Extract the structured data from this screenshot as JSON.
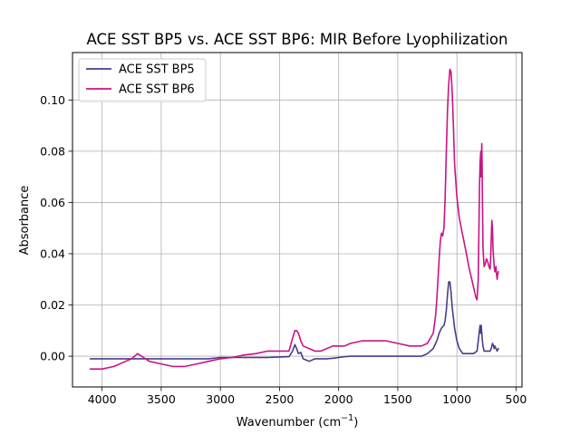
{
  "chart_data": {
    "type": "line",
    "title": "ACE SST BP5 vs. ACE SST BP6: MIR Before Lyophilization",
    "xlabel": "Wavenumber (cm",
    "xlabel_sup": "−1",
    "xlabel_close": ")",
    "ylabel": "Absorbance",
    "xlim": [
      4250,
      450
    ],
    "ylim": [
      -0.012,
      0.1185
    ],
    "x_reversed": true,
    "grid": true,
    "legend_position": "upper-left",
    "x_ticks": [
      {
        "value": 4000,
        "label": "4000"
      },
      {
        "value": 3500,
        "label": "3500"
      },
      {
        "value": 3000,
        "label": "3000"
      },
      {
        "value": 2500,
        "label": "2500"
      },
      {
        "value": 2000,
        "label": "2000"
      },
      {
        "value": 1500,
        "label": "1500"
      },
      {
        "value": 1000,
        "label": "1000"
      },
      {
        "value": 500,
        "label": "500"
      }
    ],
    "y_ticks": [
      {
        "value": 0.0,
        "label": "0.00"
      },
      {
        "value": 0.02,
        "label": "0.02"
      },
      {
        "value": 0.04,
        "label": "0.04"
      },
      {
        "value": 0.06,
        "label": "0.06"
      },
      {
        "value": 0.08,
        "label": "0.08"
      },
      {
        "value": 0.1,
        "label": "0.10"
      }
    ],
    "series": [
      {
        "name": "ACE SST BP5",
        "color": "#483d8b",
        "x": [
          4100,
          4000,
          3900,
          3800,
          3700,
          3600,
          3500,
          3400,
          3300,
          3200,
          3100,
          3000,
          2900,
          2800,
          2700,
          2600,
          2500,
          2420,
          2390,
          2370,
          2355,
          2340,
          2320,
          2300,
          2250,
          2200,
          2150,
          2100,
          2050,
          2000,
          1950,
          1900,
          1800,
          1700,
          1600,
          1500,
          1400,
          1300,
          1250,
          1200,
          1170,
          1150,
          1130,
          1110,
          1100,
          1090,
          1080,
          1070,
          1060,
          1050,
          1040,
          1020,
          1000,
          980,
          950,
          900,
          860,
          830,
          815,
          805,
          800,
          795,
          790,
          785,
          780,
          770,
          760,
          740,
          720,
          710,
          700,
          690,
          685,
          680,
          670,
          660,
          650
        ],
        "y": [
          -0.001,
          -0.001,
          -0.001,
          -0.001,
          -0.001,
          -0.001,
          -0.001,
          -0.001,
          -0.001,
          -0.001,
          -0.001,
          -0.0005,
          -0.0005,
          -0.0005,
          -0.0005,
          -0.0005,
          -0.0003,
          -0.0002,
          0.002,
          0.0045,
          0.003,
          0.001,
          0.0015,
          -0.001,
          -0.002,
          -0.001,
          -0.001,
          -0.001,
          -0.0008,
          -0.0005,
          -0.0002,
          0.0,
          0.0,
          0.0,
          0.0,
          0.0,
          0.0,
          0.0,
          0.001,
          0.003,
          0.006,
          0.009,
          0.011,
          0.012,
          0.014,
          0.018,
          0.024,
          0.029,
          0.029,
          0.025,
          0.019,
          0.011,
          0.006,
          0.003,
          0.001,
          0.001,
          0.001,
          0.002,
          0.008,
          0.012,
          0.009,
          0.012,
          0.009,
          0.006,
          0.004,
          0.002,
          0.002,
          0.002,
          0.002,
          0.003,
          0.005,
          0.004,
          0.003,
          0.004,
          0.003,
          0.002,
          0.003
        ]
      },
      {
        "name": "ACE SST BP6",
        "color": "#c71585",
        "x": [
          4100,
          4000,
          3900,
          3800,
          3750,
          3700,
          3650,
          3600,
          3500,
          3400,
          3300,
          3200,
          3100,
          3000,
          2900,
          2800,
          2700,
          2600,
          2500,
          2420,
          2390,
          2370,
          2355,
          2340,
          2320,
          2300,
          2250,
          2200,
          2150,
          2100,
          2050,
          2000,
          1950,
          1900,
          1800,
          1700,
          1600,
          1500,
          1400,
          1300,
          1250,
          1200,
          1180,
          1170,
          1160,
          1150,
          1140,
          1130,
          1120,
          1110,
          1100,
          1090,
          1080,
          1070,
          1060,
          1050,
          1040,
          1030,
          1020,
          1000,
          980,
          950,
          920,
          900,
          880,
          860,
          840,
          830,
          820,
          815,
          810,
          805,
          800,
          797,
          795,
          792,
          790,
          787,
          785,
          782,
          780,
          775,
          770,
          760,
          750,
          740,
          730,
          720,
          715,
          710,
          705,
          700,
          695,
          690,
          685,
          680,
          675,
          670,
          665,
          660,
          655,
          650
        ],
        "y": [
          -0.005,
          -0.005,
          -0.004,
          -0.002,
          -0.001,
          0.001,
          -0.0005,
          -0.002,
          -0.003,
          -0.004,
          -0.004,
          -0.003,
          -0.002,
          -0.001,
          -0.0005,
          0.0005,
          0.001,
          0.002,
          0.002,
          0.002,
          0.007,
          0.01,
          0.01,
          0.009,
          0.006,
          0.004,
          0.003,
          0.002,
          0.002,
          0.003,
          0.004,
          0.004,
          0.004,
          0.005,
          0.006,
          0.006,
          0.006,
          0.005,
          0.004,
          0.004,
          0.005,
          0.009,
          0.016,
          0.022,
          0.03,
          0.038,
          0.045,
          0.048,
          0.047,
          0.05,
          0.062,
          0.08,
          0.096,
          0.106,
          0.112,
          0.111,
          0.103,
          0.09,
          0.075,
          0.062,
          0.054,
          0.047,
          0.04,
          0.035,
          0.031,
          0.027,
          0.023,
          0.022,
          0.03,
          0.048,
          0.064,
          0.075,
          0.079,
          0.08,
          0.07,
          0.078,
          0.083,
          0.075,
          0.062,
          0.05,
          0.043,
          0.038,
          0.035,
          0.036,
          0.038,
          0.037,
          0.035,
          0.034,
          0.038,
          0.046,
          0.053,
          0.05,
          0.042,
          0.038,
          0.035,
          0.033,
          0.033,
          0.035,
          0.032,
          0.03,
          0.032,
          0.033
        ]
      }
    ]
  }
}
